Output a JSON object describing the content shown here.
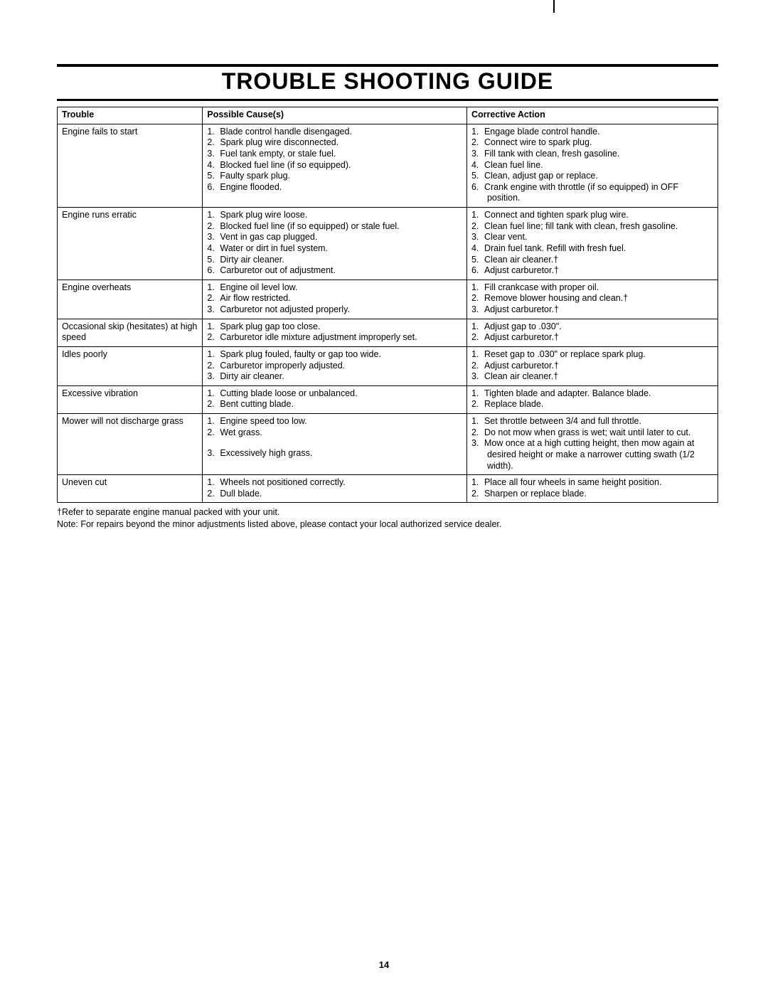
{
  "title": "TROUBLE SHOOTING GUIDE",
  "headers": {
    "trouble": "Trouble",
    "cause": "Possible Cause(s)",
    "action": "Corrective Action"
  },
  "rows": [
    {
      "trouble": "Engine fails to start",
      "causes": [
        "Blade control handle disengaged.",
        "Spark plug wire disconnected.",
        "Fuel tank empty, or stale fuel.",
        "Blocked fuel line (if so equipped).",
        "Faulty spark plug.",
        "Engine flooded."
      ],
      "actions": [
        "Engage blade control handle.",
        "Connect wire to spark plug.",
        "Fill tank with clean, fresh gasoline.",
        "Clean fuel line.",
        "Clean, adjust gap or replace.",
        "Crank engine with throttle (if so equipped) in OFF position."
      ]
    },
    {
      "trouble": "Engine runs erratic",
      "causes": [
        "Spark plug wire loose.",
        "Blocked fuel line (if so equipped) or stale fuel.",
        "Vent in gas cap plugged.",
        "Water or dirt in fuel system.",
        "Dirty air cleaner.",
        "Carburetor out of adjustment."
      ],
      "actions": [
        "Connect and tighten spark plug wire.",
        "Clean fuel line; fill tank with clean, fresh gasoline.",
        "Clear vent.",
        "Drain fuel tank. Refill with fresh fuel.",
        "Clean air cleaner.†",
        "Adjust carburetor.†"
      ]
    },
    {
      "trouble": "Engine overheats",
      "causes": [
        "Engine oil level low.",
        "Air flow restricted.",
        "Carburetor not adjusted properly."
      ],
      "actions": [
        "Fill crankcase with proper oil.",
        "Remove blower housing and clean.†",
        "Adjust carburetor.†"
      ]
    },
    {
      "trouble": "Occasional skip (hesitates) at high speed",
      "causes": [
        "Spark plug gap too close.",
        "Carburetor idle mixture adjustment improperly set."
      ],
      "actions": [
        "Adjust gap to .030\".",
        "Adjust carburetor.†"
      ]
    },
    {
      "trouble": "Idles poorly",
      "causes": [
        "Spark plug fouled, faulty or gap too wide.",
        "Carburetor improperly adjusted.",
        "Dirty air cleaner."
      ],
      "actions": [
        "Reset gap to .030\" or replace spark plug.",
        "Adjust carburetor.†",
        "Clean air cleaner.†"
      ]
    },
    {
      "trouble": "Excessive vibration",
      "causes": [
        "Cutting blade loose or unbalanced.",
        "Bent cutting blade."
      ],
      "actions": [
        "Tighten blade and adapter. Balance blade.",
        "Replace blade."
      ]
    },
    {
      "trouble": "Mower will not discharge grass",
      "causes": [
        "Engine speed too low.",
        "Wet grass.",
        "Excessively high grass."
      ],
      "actions": [
        "Set throttle between 3/4 and full throttle.",
        "Do not mow when grass is wet; wait until later to cut.",
        "Mow once at a high cutting height, then mow again at desired height or make a narrower cutting swath (1/2 width)."
      ],
      "cause_gap_after": 2
    },
    {
      "trouble": "Uneven cut",
      "causes": [
        "Wheels not positioned correctly.",
        "Dull blade."
      ],
      "actions": [
        "Place all four wheels in same height position.",
        "Sharpen or replace blade."
      ]
    }
  ],
  "footnote1": "†Refer to separate engine manual packed with your unit.",
  "footnote2": "Note: For repairs beyond the minor adjustments listed above, please contact your local authorized service dealer.",
  "page_number": "14"
}
